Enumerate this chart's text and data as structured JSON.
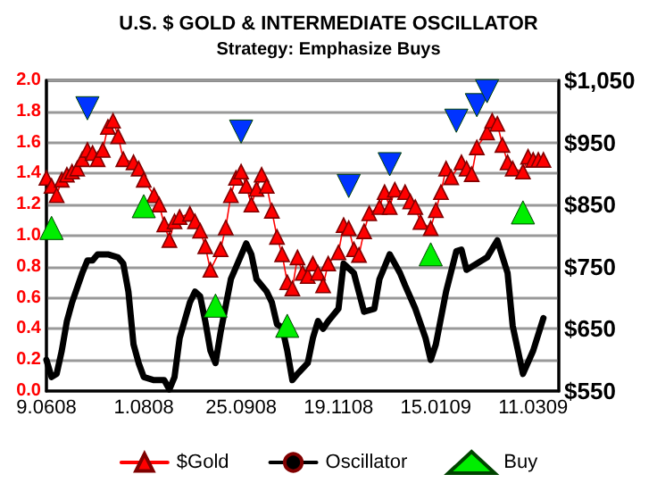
{
  "chart_data": {
    "type": "line",
    "title": "U.S. $ GOLD & INTERMEDIATE OSCILLATOR",
    "subtitle": "Strategy: Emphasize Buys",
    "categories": [
      "9.0608",
      null,
      null,
      null,
      null,
      null,
      null,
      null,
      null,
      null,
      null,
      null,
      null,
      null,
      null,
      null,
      null,
      null,
      null,
      "1.0808",
      null,
      null,
      null,
      null,
      null,
      null,
      null,
      null,
      null,
      null,
      null,
      null,
      null,
      null,
      null,
      null,
      null,
      null,
      "25.0908",
      null,
      null,
      null,
      null,
      null,
      null,
      null,
      null,
      null,
      null,
      null,
      null,
      null,
      null,
      null,
      null,
      null,
      null,
      "19.1108",
      null,
      null,
      null,
      null,
      null,
      null,
      null,
      null,
      null,
      null,
      null,
      null,
      null,
      null,
      null,
      null,
      null,
      null,
      "15.0109",
      null,
      null,
      null,
      null,
      null,
      null,
      null,
      null,
      null,
      null,
      null,
      null,
      null,
      null,
      null,
      null,
      null,
      null,
      "11.0309",
      null,
      null,
      null,
      null,
      null
    ],
    "ylim": [
      0,
      2
    ],
    "yticks": [
      {
        "value": 0,
        "label": "0.0"
      },
      0.2,
      0.4,
      0.6,
      0.8,
      {
        "value": 1,
        "label": "1.0"
      },
      1.2,
      1.4,
      1.6,
      1.8,
      {
        "value": 2,
        "label": "2.0"
      }
    ],
    "y2lim": [
      550,
      1050
    ],
    "y2ticks": [
      {
        "value": 550,
        "label": "$550"
      },
      {
        "value": 650,
        "label": "$650"
      },
      {
        "value": 750,
        "label": "$750"
      },
      {
        "value": 850,
        "label": "$850"
      },
      {
        "value": 950,
        "label": "$950"
      },
      {
        "value": 1050,
        "label": "$1,050"
      }
    ],
    "grid": "y",
    "legend": "bottom",
    "series": [
      {
        "name": "$Gold",
        "axis": "y2",
        "color": "#ff0000",
        "marker": "triangle",
        "line_style": "solid",
        "values": [
          893,
          880,
          865,
          890,
          898,
          903,
          908,
          923,
          938,
          933,
          923,
          938,
          975,
          985,
          960,
          923,
          null,
          918,
          908,
          890,
          null,
          865,
          850,
          818,
          793,
          823,
          830,
          null,
          835,
          823,
          808,
          783,
          745,
          null,
          778,
          813,
          865,
          893,
          903,
          880,
          850,
          875,
          898,
          880,
          840,
          798,
          770,
          725,
          715,
          765,
          740,
          735,
          755,
          740,
          720,
          755,
          null,
          773,
          817,
          812,
          778,
          769,
          807,
          836,
          null,
          846,
          870,
          846,
          874,
          null,
          870,
          855,
          846,
          822,
          null,
          812,
          841,
          870,
          908,
          894,
          null,
          918,
          908,
          899,
          942,
          null,
          966,
          985,
          980,
          946,
          918,
          908,
          null,
          903,
          927,
          922,
          922,
          922,
          null,
          null,
          null
        ]
      },
      {
        "name": "Oscillator",
        "color": "#000000",
        "marker": "none",
        "line_style": "solid",
        "values": [
          0.2,
          0.09,
          0.11,
          0.26,
          0.45,
          0.57,
          null,
          0.76,
          0.84,
          0.84,
          0.88,
          null,
          0.88,
          null,
          0.86,
          0.82,
          0.64,
          0.3,
          0.18,
          0.09,
          null,
          0.07,
          null,
          0.07,
          0.01,
          0.09,
          0.34,
          null,
          0.57,
          0.64,
          0.61,
          0.45,
          0.26,
          0.18,
          0.38,
          null,
          0.72,
          null,
          null,
          0.95,
          0.88,
          0.72,
          null,
          0.64,
          0.57,
          0.43,
          0.41,
          0.26,
          0.07,
          0.11,
          null,
          0.18,
          0.34,
          0.45,
          0.4,
          0.45,
          null,
          0.53,
          0.82,
          null,
          0.76,
          null,
          0.51,
          null,
          0.53,
          0.72,
          null,
          0.88,
          null,
          0.76,
          0.68,
          null,
          0.53,
          null,
          0.34,
          0.2,
          0.3,
          null,
          0.64,
          null,
          0.9,
          0.91,
          0.78,
          null,
          0.82,
          null,
          0.86,
          null,
          0.97,
          null,
          0.76,
          0.42,
          null,
          0.11,
          null,
          0.26,
          null,
          0.47,
          null,
          null,
          null
        ]
      },
      {
        "name": "Buy",
        "type": "scatter",
        "color": "#00ee00",
        "marker": "triangle",
        "values": [
          null,
          1.05,
          null,
          null,
          null,
          null,
          null,
          null,
          null,
          null,
          null,
          null,
          null,
          null,
          null,
          null,
          null,
          null,
          null,
          1.19,
          null,
          null,
          null,
          null,
          null,
          null,
          null,
          null,
          null,
          null,
          null,
          null,
          null,
          0.55,
          null,
          null,
          null,
          null,
          null,
          null,
          null,
          null,
          null,
          null,
          null,
          null,
          null,
          0.42,
          null,
          null,
          null,
          null,
          null,
          null,
          null,
          null,
          null,
          null,
          null,
          null,
          null,
          null,
          null,
          null,
          null,
          null,
          null,
          null,
          null,
          null,
          null,
          null,
          null,
          null,
          null,
          0.88,
          null,
          null,
          null,
          null,
          null,
          null,
          null,
          null,
          null,
          null,
          null,
          null,
          null,
          null,
          null,
          null,
          null,
          1.15,
          null,
          null,
          null,
          null,
          null,
          null,
          null
        ]
      },
      {
        "type": "scatter",
        "color": "#0033ff",
        "marker": "triangle-down",
        "values": [
          null,
          null,
          null,
          null,
          null,
          null,
          null,
          null,
          1.82,
          null,
          null,
          null,
          null,
          null,
          null,
          null,
          null,
          null,
          null,
          null,
          null,
          null,
          null,
          null,
          null,
          null,
          null,
          null,
          null,
          null,
          null,
          null,
          null,
          null,
          null,
          null,
          null,
          null,
          1.67,
          null,
          null,
          null,
          null,
          null,
          null,
          null,
          null,
          null,
          null,
          null,
          null,
          null,
          null,
          null,
          null,
          null,
          null,
          null,
          null,
          1.32,
          null,
          null,
          null,
          null,
          null,
          null,
          null,
          1.46,
          null,
          null,
          null,
          null,
          null,
          null,
          null,
          null,
          null,
          null,
          null,
          null,
          1.74,
          null,
          null,
          null,
          1.84,
          null,
          1.93,
          null,
          null,
          null,
          null,
          null,
          null,
          null,
          null,
          null,
          null,
          null,
          null,
          null,
          null
        ]
      }
    ]
  }
}
